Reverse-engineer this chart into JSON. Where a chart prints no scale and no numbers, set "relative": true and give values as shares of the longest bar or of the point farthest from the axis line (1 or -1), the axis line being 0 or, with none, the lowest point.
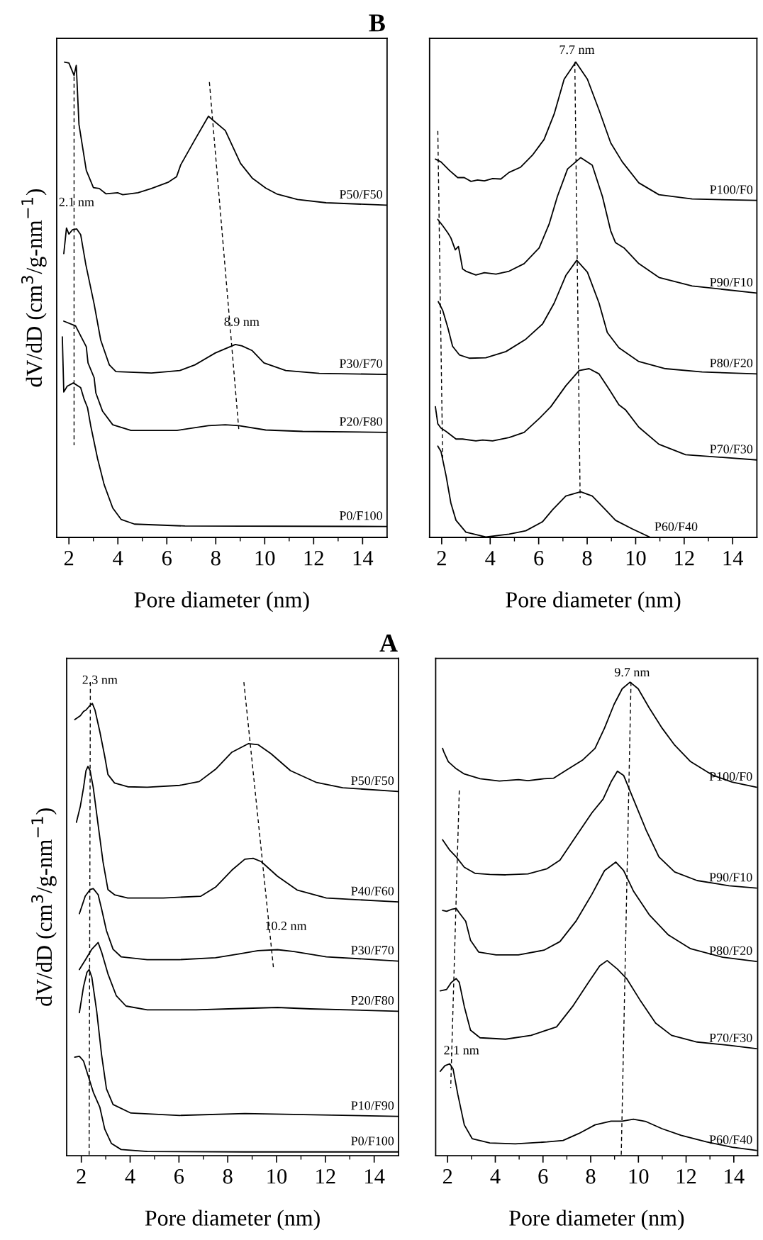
{
  "chart_data": [
    {
      "type": "line",
      "title": "B",
      "xlabel": "Pore diameter (nm)",
      "ylabel": "dV/dD (cm$^{3}$/g-nm$^{−1}$)",
      "relative": true,
      "tick_labels": "x",
      "xlim": [
        1.5,
        15
      ],
      "xticks": [
        2,
        {
          "value": 3,
          "label": null
        },
        4,
        {
          "value": 5,
          "label": null
        },
        6,
        {
          "value": 7,
          "label": null
        },
        8,
        {
          "value": 9,
          "label": null
        },
        10,
        {
          "value": 11,
          "label": null
        },
        12,
        {
          "value": 13,
          "label": null
        },
        14
      ],
      "series": [
        {
          "name": "P50/F50",
          "color": "#000000",
          "x": [
            1.82,
            2.0,
            2.21,
            2.3,
            2.41,
            2.71,
            3.0,
            3.24,
            3.51,
            3.99,
            4.2,
            4.82,
            5.37,
            6.05,
            6.4,
            6.57,
            7.15,
            7.7,
            8.39,
            9.01,
            9.49,
            10.04,
            10.52,
            11.34,
            12.51,
            14.98
          ],
          "values": [
            1.0,
            0.998,
            0.972,
            0.993,
            0.869,
            0.772,
            0.736,
            0.734,
            0.723,
            0.725,
            0.721,
            0.725,
            0.734,
            0.747,
            0.759,
            0.784,
            0.837,
            0.886,
            0.856,
            0.787,
            0.756,
            0.735,
            0.722,
            0.711,
            0.704,
            0.699
          ]
        },
        {
          "name": "P30/F70",
          "color": "#000000",
          "x": [
            1.79,
            1.9,
            2.0,
            2.14,
            2.32,
            2.48,
            2.69,
            3.03,
            3.3,
            3.65,
            3.92,
            5.37,
            6.05,
            6.53,
            7.15,
            7.98,
            8.8,
            9.07,
            9.49,
            9.97,
            10.86,
            12.23,
            14.98
          ],
          "values": [
            0.597,
            0.651,
            0.638,
            0.647,
            0.649,
            0.637,
            0.574,
            0.491,
            0.415,
            0.363,
            0.349,
            0.346,
            0.349,
            0.351,
            0.363,
            0.388,
            0.406,
            0.403,
            0.393,
            0.367,
            0.351,
            0.345,
            0.343
          ]
        },
        {
          "name": "P20/F80",
          "color": "#000000",
          "x": [
            1.79,
            2.27,
            2.71,
            2.78,
            3.03,
            3.1,
            3.37,
            3.79,
            4.54,
            6.4,
            7.7,
            8.39,
            8.94,
            10.04,
            11.55,
            14.98
          ],
          "values": [
            0.455,
            0.445,
            0.401,
            0.367,
            0.336,
            0.304,
            0.266,
            0.237,
            0.225,
            0.225,
            0.235,
            0.237,
            0.235,
            0.226,
            0.223,
            0.221
          ]
        },
        {
          "name": "P0/F100",
          "color": "#000000",
          "x": [
            1.73,
            1.79,
            1.93,
            2.18,
            2.48,
            2.62,
            2.76,
            2.89,
            3.17,
            3.44,
            3.79,
            4.13,
            4.68,
            6.74,
            14.98
          ],
          "values": [
            0.422,
            0.306,
            0.318,
            0.325,
            0.315,
            0.291,
            0.273,
            0.235,
            0.166,
            0.111,
            0.062,
            0.038,
            0.028,
            0.024,
            0.023
          ]
        },
        {
          "type": "line",
          "line_style": "dashed",
          "color": "#000000",
          "x": [
            2.21,
            2.21
          ],
          "values": [
            0.969,
            0.194
          ]
        },
        {
          "type": "line",
          "line_style": "dashed",
          "color": "#000000",
          "x": [
            7.74,
            8.94
          ],
          "values": [
            0.958,
            0.228
          ]
        }
      ],
      "annotations": [
        "2.1 nm",
        "8.9 nm"
      ]
    },
    {
      "type": "line",
      "xlabel": "Pore diameter (nm)",
      "relative": true,
      "tick_labels": "x",
      "xlim": [
        1.5,
        15
      ],
      "xticks": [
        2,
        {
          "value": 3,
          "label": null
        },
        4,
        {
          "value": 5,
          "label": null
        },
        6,
        {
          "value": 7,
          "label": null
        },
        8,
        {
          "value": 9,
          "label": null
        },
        10,
        {
          "value": 11,
          "label": null
        },
        12,
        {
          "value": 13,
          "label": null
        },
        14
      ],
      "series": [
        {
          "name": "P100/F0",
          "color": "#000000",
          "x": [
            1.74,
            1.97,
            2.32,
            2.66,
            2.93,
            3.21,
            3.48,
            3.76,
            4.1,
            4.44,
            4.78,
            5.26,
            5.74,
            6.22,
            6.64,
            7.05,
            7.53,
            8.01,
            8.49,
            8.97,
            9.45,
            10.13,
            10.96,
            12.33,
            15.0
          ],
          "values": [
            0.796,
            0.79,
            0.772,
            0.757,
            0.757,
            0.749,
            0.752,
            0.75,
            0.755,
            0.754,
            0.768,
            0.779,
            0.804,
            0.837,
            0.891,
            0.964,
            1.0,
            0.964,
            0.899,
            0.83,
            0.79,
            0.746,
            0.721,
            0.712,
            0.709
          ]
        },
        {
          "name": "P90/F10",
          "color": "#000000",
          "x": [
            1.84,
            2.04,
            2.25,
            2.38,
            2.56,
            2.69,
            2.77,
            2.86,
            3.0,
            3.41,
            3.76,
            4.24,
            4.78,
            5.4,
            6.02,
            6.43,
            6.77,
            7.19,
            7.73,
            8.21,
            8.63,
            8.97,
            9.17,
            9.52,
            10.13,
            10.96,
            12.33,
            15.0
          ],
          "values": [
            0.669,
            0.656,
            0.641,
            0.63,
            0.605,
            0.612,
            0.591,
            0.565,
            0.56,
            0.552,
            0.557,
            0.554,
            0.56,
            0.576,
            0.609,
            0.659,
            0.717,
            0.775,
            0.799,
            0.783,
            0.717,
            0.645,
            0.62,
            0.609,
            0.576,
            0.547,
            0.529,
            0.514
          ]
        },
        {
          "name": "P80/F20",
          "color": "#000000",
          "x": [
            1.86,
            2.04,
            2.25,
            2.45,
            2.73,
            3.14,
            3.82,
            4.65,
            5.47,
            6.16,
            6.64,
            7.12,
            7.57,
            8.01,
            8.49,
            8.83,
            9.31,
            10.13,
            11.23,
            12.74,
            15.0
          ],
          "values": [
            0.496,
            0.478,
            0.442,
            0.402,
            0.384,
            0.377,
            0.378,
            0.391,
            0.417,
            0.449,
            0.493,
            0.551,
            0.583,
            0.558,
            0.493,
            0.431,
            0.399,
            0.37,
            0.355,
            0.348,
            0.344
          ]
        },
        {
          "name": "P70/F30",
          "color": "#000000",
          "x": [
            1.74,
            1.84,
            1.97,
            2.18,
            2.59,
            2.86,
            3.41,
            3.69,
            4.1,
            4.78,
            5.4,
            6.02,
            6.5,
            7.12,
            7.67,
            8.08,
            8.49,
            8.9,
            9.31,
            9.59,
            10.13,
            10.96,
            12.06,
            15.0
          ],
          "values": [
            0.275,
            0.239,
            0.23,
            0.223,
            0.207,
            0.207,
            0.203,
            0.205,
            0.203,
            0.21,
            0.221,
            0.25,
            0.275,
            0.319,
            0.351,
            0.355,
            0.344,
            0.312,
            0.279,
            0.268,
            0.232,
            0.196,
            0.174,
            0.163
          ]
        },
        {
          "name": "P60/F40",
          "color": "#000000",
          "x": [
            1.84,
            1.97,
            2.18,
            2.38,
            2.59,
            3.0,
            3.82,
            4.78,
            5.47,
            6.16,
            6.57,
            7.12,
            7.73,
            8.21,
            8.76,
            9.17,
            9.86,
            10.61
          ],
          "values": [
            0.192,
            0.181,
            0.13,
            0.072,
            0.036,
            0.011,
            0.001,
            0.007,
            0.014,
            0.033,
            0.058,
            0.087,
            0.096,
            0.087,
            0.058,
            0.036,
            0.018,
            0.0
          ]
        },
        {
          "type": "line",
          "line_style": "dashed",
          "color": "#000000",
          "x": [
            1.84,
            2.04
          ],
          "values": [
            0.855,
            0.167
          ]
        },
        {
          "type": "line",
          "line_style": "dashed",
          "color": "#000000",
          "x": [
            7.49,
            7.71
          ],
          "values": [
            1.0,
            0.083
          ]
        }
      ],
      "annotations": [
        "7.7 nm"
      ]
    },
    {
      "type": "line",
      "title": "A",
      "xlabel": "Pore diameter (nm)",
      "ylabel": "dV/dD (cm$^{3}$/g-nm$^{−1}$)",
      "relative": true,
      "tick_labels": "x",
      "xlim": [
        1.4,
        15
      ],
      "xticks": [
        2,
        {
          "value": 3,
          "label": null
        },
        4,
        {
          "value": 5,
          "label": null
        },
        6,
        {
          "value": 7,
          "label": null
        },
        8,
        {
          "value": 9,
          "label": null
        },
        10,
        {
          "value": 11,
          "label": null
        },
        12,
        {
          "value": 13,
          "label": null
        },
        14
      ],
      "series": [
        {
          "name": "P50/F50",
          "color": "#000000",
          "x": [
            1.73,
            1.96,
            2.09,
            2.19,
            2.36,
            2.45,
            2.56,
            2.76,
            2.96,
            3.09,
            3.36,
            3.9,
            4.7,
            6.03,
            6.83,
            7.5,
            8.17,
            8.84,
            9.24,
            9.77,
            10.57,
            11.64,
            12.71,
            14.98
          ],
          "values": [
            0.921,
            0.929,
            0.938,
            0.941,
            0.951,
            0.955,
            0.941,
            0.895,
            0.843,
            0.805,
            0.787,
            0.779,
            0.778,
            0.782,
            0.79,
            0.816,
            0.852,
            0.87,
            0.868,
            0.849,
            0.813,
            0.788,
            0.777,
            0.769
          ]
        },
        {
          "name": "P40/F60",
          "color": "#000000",
          "x": [
            1.8,
            1.96,
            2.09,
            2.19,
            2.27,
            2.36,
            2.49,
            2.69,
            2.89,
            3.09,
            3.36,
            3.9,
            5.36,
            6.9,
            7.5,
            8.17,
            8.7,
            9.04,
            9.37,
            10.04,
            10.84,
            12.04,
            14.98
          ],
          "values": [
            0.704,
            0.738,
            0.777,
            0.813,
            0.822,
            0.813,
            0.777,
            0.698,
            0.62,
            0.562,
            0.551,
            0.544,
            0.544,
            0.548,
            0.567,
            0.603,
            0.626,
            0.628,
            0.621,
            0.59,
            0.561,
            0.544,
            0.536
          ]
        },
        {
          "name": "P30/F70",
          "color": "#000000",
          "x": [
            1.92,
            2.16,
            2.36,
            2.49,
            2.69,
            2.83,
            3.03,
            3.3,
            3.63,
            4.7,
            6.03,
            7.5,
            8.44,
            9.24,
            10.04,
            10.71,
            12.04,
            14.98
          ],
          "values": [
            0.511,
            0.548,
            0.562,
            0.564,
            0.551,
            0.521,
            0.475,
            0.436,
            0.42,
            0.414,
            0.414,
            0.418,
            0.426,
            0.433,
            0.435,
            0.431,
            0.42,
            0.411
          ]
        },
        {
          "name": "P20/F80",
          "color": "#000000",
          "x": [
            1.92,
            2.16,
            2.43,
            2.69,
            2.83,
            3.09,
            3.43,
            3.83,
            4.7,
            6.7,
            8.03,
            10.04,
            11.37,
            14.98
          ],
          "values": [
            0.393,
            0.413,
            0.436,
            0.45,
            0.43,
            0.384,
            0.338,
            0.316,
            0.308,
            0.308,
            0.31,
            0.313,
            0.31,
            0.305
          ]
        },
        {
          "name": "P10/F90",
          "color": "#000000",
          "x": [
            1.92,
            2.09,
            2.23,
            2.32,
            2.43,
            2.63,
            2.83,
            3.03,
            3.3,
            4.03,
            6.03,
            8.7,
            10.7,
            14.98
          ],
          "values": [
            0.302,
            0.357,
            0.387,
            0.393,
            0.377,
            0.305,
            0.213,
            0.141,
            0.108,
            0.09,
            0.085,
            0.089,
            0.087,
            0.083
          ]
        },
        {
          "name": "P0/F100",
          "color": "#000000",
          "x": [
            1.73,
            1.92,
            2.09,
            2.29,
            2.49,
            2.76,
            2.96,
            3.23,
            3.63,
            4.7,
            8.7,
            14.98
          ],
          "values": [
            0.208,
            0.21,
            0.2,
            0.167,
            0.134,
            0.102,
            0.056,
            0.026,
            0.013,
            0.009,
            0.008,
            0.008
          ]
        },
        {
          "type": "line",
          "line_style": "dashed",
          "color": "#000000",
          "x": [
            2.37,
            2.32
          ],
          "values": [
            1.0,
            0.0
          ]
        },
        {
          "type": "line",
          "line_style": "dashed",
          "color": "#000000",
          "x": [
            8.66,
            9.88
          ],
          "values": [
            1.0,
            0.393
          ]
        }
      ],
      "annotations": [
        "2.3 nm",
        "10.2 nm"
      ]
    },
    {
      "type": "line",
      "xlabel": "Pore diameter (nm)",
      "relative": true,
      "tick_labels": "x",
      "xlim": [
        1.5,
        15
      ],
      "xticks": [
        2,
        {
          "value": 3,
          "label": null
        },
        4,
        {
          "value": 5,
          "label": null
        },
        6,
        {
          "value": 7,
          "label": null
        },
        8,
        {
          "value": 9,
          "label": null
        },
        10,
        {
          "value": 11,
          "label": null
        },
        12,
        {
          "value": 13,
          "label": null
        },
        14
      ],
      "series": [
        {
          "name": "P100/F0",
          "color": "#000000",
          "x": [
            1.79,
            1.84,
            2.03,
            2.36,
            2.7,
            3.36,
            4.17,
            4.97,
            5.37,
            6.04,
            6.44,
            6.98,
            7.65,
            8.18,
            8.58,
            8.98,
            9.32,
            9.65,
            9.99,
            10.45,
            10.99,
            11.52,
            12.19,
            13.13,
            13.93,
            14.95
          ],
          "values": [
            0.86,
            0.853,
            0.832,
            0.817,
            0.806,
            0.796,
            0.791,
            0.794,
            0.792,
            0.796,
            0.797,
            0.814,
            0.835,
            0.86,
            0.903,
            0.953,
            0.986,
            1.0,
            0.986,
            0.946,
            0.903,
            0.867,
            0.832,
            0.803,
            0.789,
            0.778
          ]
        },
        {
          "name": "P90/F10",
          "color": "#000000",
          "x": [
            1.79,
            2.09,
            2.36,
            2.7,
            3.16,
            3.77,
            4.43,
            5.37,
            6.17,
            6.71,
            7.38,
            8.05,
            8.52,
            8.85,
            9.12,
            9.38,
            9.79,
            10.32,
            10.86,
            11.52,
            12.46,
            13.8,
            14.95
          ],
          "values": [
            0.667,
            0.645,
            0.631,
            0.609,
            0.596,
            0.594,
            0.593,
            0.595,
            0.606,
            0.624,
            0.674,
            0.724,
            0.753,
            0.789,
            0.812,
            0.803,
            0.753,
            0.688,
            0.631,
            0.599,
            0.581,
            0.57,
            0.565
          ]
        },
        {
          "name": "P80/F20",
          "color": "#000000",
          "x": [
            1.79,
            1.96,
            2.16,
            2.36,
            2.49,
            2.76,
            2.96,
            3.3,
            4.03,
            4.97,
            6.04,
            6.71,
            7.38,
            8.05,
            8.58,
            9.05,
            9.38,
            9.79,
            10.45,
            11.26,
            12.19,
            13.53,
            14.95
          ],
          "values": [
            0.518,
            0.516,
            0.52,
            0.522,
            0.513,
            0.495,
            0.455,
            0.43,
            0.424,
            0.424,
            0.434,
            0.452,
            0.495,
            0.552,
            0.602,
            0.62,
            0.602,
            0.559,
            0.509,
            0.466,
            0.437,
            0.419,
            0.41
          ]
        },
        {
          "name": "P70/F30",
          "color": "#000000",
          "x": [
            1.69,
            1.96,
            2.16,
            2.36,
            2.49,
            2.7,
            2.96,
            3.36,
            4.43,
            5.5,
            6.57,
            7.24,
            7.91,
            8.38,
            8.69,
            9.12,
            9.52,
            10.05,
            10.72,
            11.39,
            12.46,
            13.8,
            14.95
          ],
          "values": [
            0.348,
            0.351,
            0.366,
            0.374,
            0.366,
            0.315,
            0.265,
            0.249,
            0.246,
            0.254,
            0.272,
            0.315,
            0.366,
            0.401,
            0.412,
            0.394,
            0.373,
            0.33,
            0.28,
            0.254,
            0.24,
            0.233,
            0.226
          ]
        },
        {
          "name": "P60/F40",
          "color": "#000000",
          "x": [
            1.69,
            1.89,
            2.09,
            2.23,
            2.43,
            2.7,
            3.03,
            3.77,
            4.84,
            6.17,
            6.84,
            7.51,
            8.18,
            8.85,
            9.32,
            9.79,
            10.32,
            10.99,
            11.79,
            12.86,
            13.93,
            14.95
          ],
          "values": [
            0.178,
            0.19,
            0.194,
            0.183,
            0.129,
            0.065,
            0.036,
            0.027,
            0.025,
            0.029,
            0.032,
            0.047,
            0.065,
            0.073,
            0.073,
            0.077,
            0.072,
            0.057,
            0.043,
            0.029,
            0.018,
            0.011
          ]
        },
        {
          "type": "line",
          "line_style": "dashed",
          "color": "#000000",
          "x": [
            2.49,
            2.13
          ],
          "values": [
            0.771,
            0.143
          ]
        },
        {
          "type": "line",
          "line_style": "dashed",
          "color": "#000000",
          "x": [
            9.69,
            9.28
          ],
          "values": [
            1.0,
            0.0
          ]
        }
      ],
      "annotations": [
        "9.7 nm",
        "2.1 nm"
      ]
    }
  ]
}
